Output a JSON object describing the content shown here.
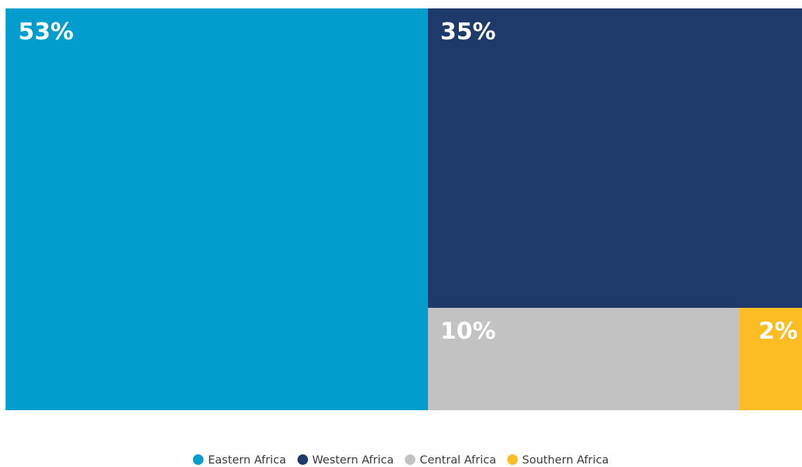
{
  "chart_data": {
    "type": "treemap",
    "title": "",
    "categories": [
      "Eastern Africa",
      "Western Africa",
      "Central Africa",
      "Southern Africa"
    ],
    "values": [
      53,
      35,
      10,
      2
    ],
    "unit": "%",
    "data_labels": [
      "53%",
      "35%",
      "10%",
      "2%"
    ],
    "colors": [
      "#009dcd",
      "#1d3a6b",
      "#c2c2c2",
      "#fcbc24"
    ],
    "legend_position": "bottom"
  },
  "legend": {
    "items": [
      {
        "label": "Eastern Africa",
        "color": "#009dcd"
      },
      {
        "label": "Western Africa",
        "color": "#1d3a6b"
      },
      {
        "label": "Central Africa",
        "color": "#c2c2c2"
      },
      {
        "label": "Southern Africa",
        "color": "#fcbc24"
      }
    ]
  }
}
